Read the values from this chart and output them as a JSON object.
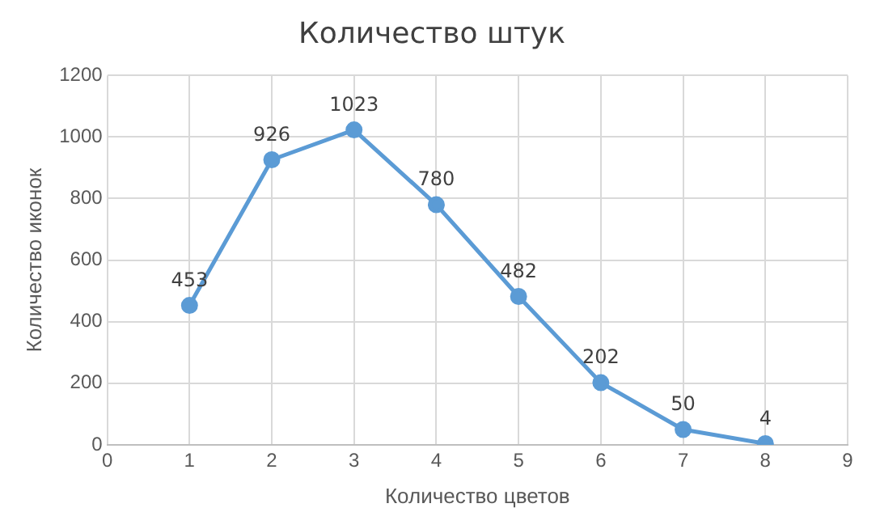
{
  "chart_data": {
    "type": "line",
    "title": "Количество штук",
    "xlabel": "Количество цветов",
    "ylabel": "Количество иконок",
    "x": [
      1,
      2,
      3,
      4,
      5,
      6,
      7,
      8
    ],
    "series": [
      {
        "color": "#5b9bd5",
        "values": [
          453,
          926,
          1023,
          780,
          482,
          202,
          50,
          4
        ]
      }
    ],
    "xlim": [
      0,
      9
    ],
    "xticks": [
      0,
      1,
      2,
      3,
      4,
      5,
      6,
      7,
      8,
      9
    ],
    "ylim": [
      0,
      1200
    ],
    "yticks": [
      0,
      200,
      400,
      600,
      800,
      1000,
      1200
    ],
    "grid": true,
    "marker": "circle",
    "line_style": "solid",
    "data_labels": true,
    "legend": false
  }
}
